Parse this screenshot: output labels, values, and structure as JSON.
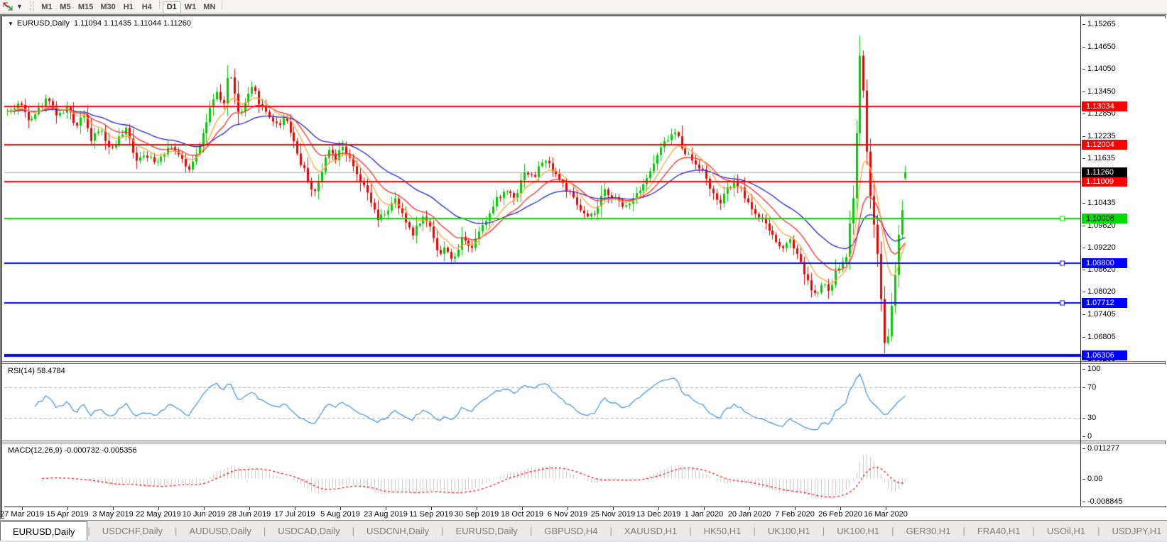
{
  "toolbar": {
    "timeframes": [
      "M1",
      "M5",
      "M15",
      "M30",
      "H1",
      "H4",
      "D1",
      "W1",
      "MN"
    ],
    "active_timeframe": "D1"
  },
  "chart": {
    "title_text": "EURUSD,Daily  1.11094 1.11435 1.11044 1.11260",
    "collapse_glyph": "▼"
  },
  "chart_data": {
    "type": "candlestick",
    "symbol": "EURUSD",
    "timeframe": "Daily",
    "ohlc_display": {
      "open": "1.11094",
      "high": "1.11435",
      "low": "1.11044",
      "close": "1.11260"
    },
    "ylim": [
      1.06147,
      1.15419
    ],
    "y_ticks": [
      "1.15265",
      "1.14650",
      "1.14050",
      "1.13450",
      "1.12850",
      "1.12235",
      "1.11635",
      "1.10435",
      "1.09820",
      "1.09220",
      "1.08620",
      "1.08020",
      "1.07405",
      "1.06805",
      "1.06205"
    ],
    "x_labels": [
      "27 Mar 2019",
      "15 Apr 2019",
      "3 May 2019",
      "22 May 2019",
      "10 Jun 2019",
      "28 Jun 2019",
      "17 Jul 2019",
      "5 Aug 2019",
      "23 Aug 2019",
      "11 Sep 2019",
      "30 Sep 2019",
      "18 Oct 2019",
      "6 Nov 2019",
      "25 Nov 2019",
      "13 Dec 2019",
      "1 Jan 2020",
      "20 Jan 2020",
      "7 Feb 2020",
      "26 Feb 2020",
      "16 Mar 2020"
    ],
    "x_tick_start": 25,
    "x_tick_spacing": 64,
    "plot": {
      "x_start": 4,
      "candle_spacing": 4.92,
      "candle_count": 258,
      "seed": 42
    },
    "price_waypoints": [
      [
        8,
        1.129
      ],
      [
        20,
        1.1315
      ],
      [
        35,
        1.127
      ],
      [
        50,
        1.13
      ],
      [
        62,
        1.133
      ],
      [
        75,
        1.1275
      ],
      [
        88,
        1.13
      ],
      [
        100,
        1.125
      ],
      [
        112,
        1.129
      ],
      [
        122,
        1.121
      ],
      [
        135,
        1.1245
      ],
      [
        148,
        1.1185
      ],
      [
        160,
        1.1215
      ],
      [
        172,
        1.124
      ],
      [
        185,
        1.116
      ],
      [
        198,
        1.118
      ],
      [
        210,
        1.115
      ],
      [
        222,
        1.1175
      ],
      [
        235,
        1.12
      ],
      [
        247,
        1.1165
      ],
      [
        258,
        1.113
      ],
      [
        268,
        1.117
      ],
      [
        278,
        1.122
      ],
      [
        290,
        1.13
      ],
      [
        300,
        1.134
      ],
      [
        308,
        1.13
      ],
      [
        315,
        1.1395
      ],
      [
        322,
        1.1365
      ],
      [
        330,
        1.127
      ],
      [
        340,
        1.132
      ],
      [
        350,
        1.1355
      ],
      [
        360,
        1.131
      ],
      [
        372,
        1.128
      ],
      [
        385,
        1.125
      ],
      [
        395,
        1.128
      ],
      [
        405,
        1.1225
      ],
      [
        415,
        1.116
      ],
      [
        425,
        1.112
      ],
      [
        435,
        1.1065
      ],
      [
        445,
        1.111
      ],
      [
        455,
        1.12
      ],
      [
        465,
        1.116
      ],
      [
        475,
        1.1205
      ],
      [
        488,
        1.115
      ],
      [
        500,
        1.11
      ],
      [
        512,
        1.1065
      ],
      [
        525,
        1.0995
      ],
      [
        538,
        1.102
      ],
      [
        550,
        1.105
      ],
      [
        562,
        1.1
      ],
      [
        575,
        1.096
      ],
      [
        588,
        1.1005
      ],
      [
        600,
        1.098
      ],
      [
        612,
        1.09
      ],
      [
        622,
        1.0925
      ],
      [
        632,
        1.088
      ],
      [
        645,
        1.0955
      ],
      [
        658,
        1.092
      ],
      [
        670,
        1.098
      ],
      [
        682,
        1.101
      ],
      [
        695,
        1.106
      ],
      [
        708,
        1.1075
      ],
      [
        720,
        1.106
      ],
      [
        732,
        1.113
      ],
      [
        745,
        1.111
      ],
      [
        758,
        1.116
      ],
      [
        770,
        1.114
      ],
      [
        782,
        1.1105
      ],
      [
        795,
        1.107
      ],
      [
        808,
        1.103
      ],
      [
        820,
        1.1
      ],
      [
        832,
        1.1015
      ],
      [
        845,
        1.1075
      ],
      [
        858,
        1.106
      ],
      [
        870,
        1.103
      ],
      [
        882,
        1.105
      ],
      [
        895,
        1.1085
      ],
      [
        908,
        1.112
      ],
      [
        920,
        1.1175
      ],
      [
        932,
        1.1215
      ],
      [
        945,
        1.1235
      ],
      [
        955,
        1.119
      ],
      [
        968,
        1.116
      ],
      [
        980,
        1.114
      ],
      [
        992,
        1.109
      ],
      [
        1005,
        1.1035
      ],
      [
        1018,
        1.108
      ],
      [
        1030,
        1.11
      ],
      [
        1042,
        1.106
      ],
      [
        1055,
        1.102
      ],
      [
        1068,
        1.099
      ],
      [
        1080,
        1.096
      ],
      [
        1092,
        1.092
      ],
      [
        1105,
        1.0945
      ],
      [
        1118,
        1.09
      ],
      [
        1130,
        1.083
      ],
      [
        1142,
        1.079
      ],
      [
        1152,
        1.0825
      ],
      [
        1162,
        1.08
      ],
      [
        1172,
        1.0865
      ],
      [
        1180,
        1.088
      ],
      [
        1185,
        1.09
      ],
      [
        1190,
        1.099
      ],
      [
        1196,
        1.108
      ],
      [
        1200,
        1.125
      ],
      [
        1204,
        1.145
      ],
      [
        1208,
        1.139
      ],
      [
        1212,
        1.127
      ],
      [
        1216,
        1.113
      ],
      [
        1220,
        1.104
      ],
      [
        1225,
        1.0975
      ],
      [
        1230,
        1.089
      ],
      [
        1235,
        1.076
      ],
      [
        1240,
        1.0645
      ],
      [
        1245,
        1.07
      ],
      [
        1250,
        1.078
      ],
      [
        1255,
        1.087
      ],
      [
        1259,
        1.096
      ],
      [
        1263,
        1.103
      ],
      [
        1267,
        1.0985
      ],
      [
        1272,
        1.1126
      ]
    ],
    "spike_high": [
      1204,
      1.1495
    ],
    "crash_low": [
      1240,
      1.0636
    ],
    "last_candle": [
      1.11094,
      1.11435,
      1.11044,
      1.1126
    ],
    "current_price": {
      "value": 1.1126,
      "label": "1.11260",
      "label_bg": "#000000",
      "label_fg": "#FFFFFF"
    },
    "hlines": [
      {
        "price": 1.13034,
        "label": "1.13034",
        "color": "#FF0000",
        "width": 2,
        "label_bg": "#FF0000",
        "label_fg": "#FFFFFF",
        "handle": false
      },
      {
        "price": 1.12004,
        "label": "1.12004",
        "color": "#FF0000",
        "width": 2,
        "label_bg": "#FF0000",
        "label_fg": "#FFFFFF",
        "handle": false
      },
      {
        "price": 1.11009,
        "label": "1.11009",
        "color": "#FF0000",
        "width": 2,
        "label_bg": "#FF0000",
        "label_fg": "#FFFFFF",
        "handle": false
      },
      {
        "price": 1.10008,
        "label": "1.10008",
        "color": "#00DD00",
        "width": 2,
        "label_bg": "#00DD00",
        "label_fg": "#000000",
        "handle": true
      },
      {
        "price": 1.088,
        "label": "1.08800",
        "color": "#0000FF",
        "width": 2,
        "label_bg": "#0000FF",
        "label_fg": "#FFFFFF",
        "handle": true
      },
      {
        "price": 1.07712,
        "label": "1.07712",
        "color": "#0000FF",
        "width": 2,
        "label_bg": "#0000FF",
        "label_fg": "#FFFFFF",
        "handle": true
      },
      {
        "price": 1.06306,
        "label": "1.06306",
        "color": "#0000FF",
        "width": 4,
        "label_bg": "#0000FF",
        "label_fg": "#FFFFFF",
        "handle": false
      }
    ],
    "moving_averages": [
      {
        "name": "slow-ma",
        "period": 34,
        "color": "#2222CC"
      },
      {
        "name": "medium-ma",
        "period": 16,
        "color": "#FF2A2A"
      },
      {
        "name": "fast-ma",
        "period": 8,
        "color": "#FFA43C"
      }
    ],
    "indicators": [
      {
        "type": "rsi",
        "label": "RSI(14)",
        "value": "58.4784",
        "period": 14,
        "levels": [
          70,
          30
        ],
        "y_ticks": [
          "100",
          "70",
          "30",
          "0"
        ],
        "ylim": [
          0,
          100
        ],
        "color": "#3E8FD8"
      },
      {
        "type": "macd",
        "label": "MACD(12,26,9)",
        "value": "-0.000732 -0.005356",
        "fast": 12,
        "slow": 26,
        "signal": 9,
        "y_ticks": [
          "0.011277",
          "0.00",
          "-0.008845"
        ],
        "ylim": [
          -0.008845,
          0.011277
        ],
        "histogram_color": "#C4C4C4",
        "signal_color": "#FF0000"
      }
    ],
    "colors": {
      "bull": "#00CC00",
      "bear": "#EE0000",
      "background": "#FFFFFF",
      "current_price_line": "#A8A8A8"
    }
  },
  "tabs": {
    "items": [
      "EURUSD,Daily",
      "USDCHF,Daily",
      "AUDUSD,Daily",
      "USDCAD,Daily",
      "USDCNH,Daily",
      "EURUSD,Daily",
      "GBPUSD,H4",
      "XAUUSD,H1",
      "HK50,H1",
      "UK100,H1",
      "UK100,H1",
      "GER30,H1",
      "FRA40,H1",
      "USOil,H1",
      "USDJPY,H1"
    ],
    "active_index": 0,
    "scroll_left_glyph": "◄",
    "scroll_right_glyph": "►"
  }
}
